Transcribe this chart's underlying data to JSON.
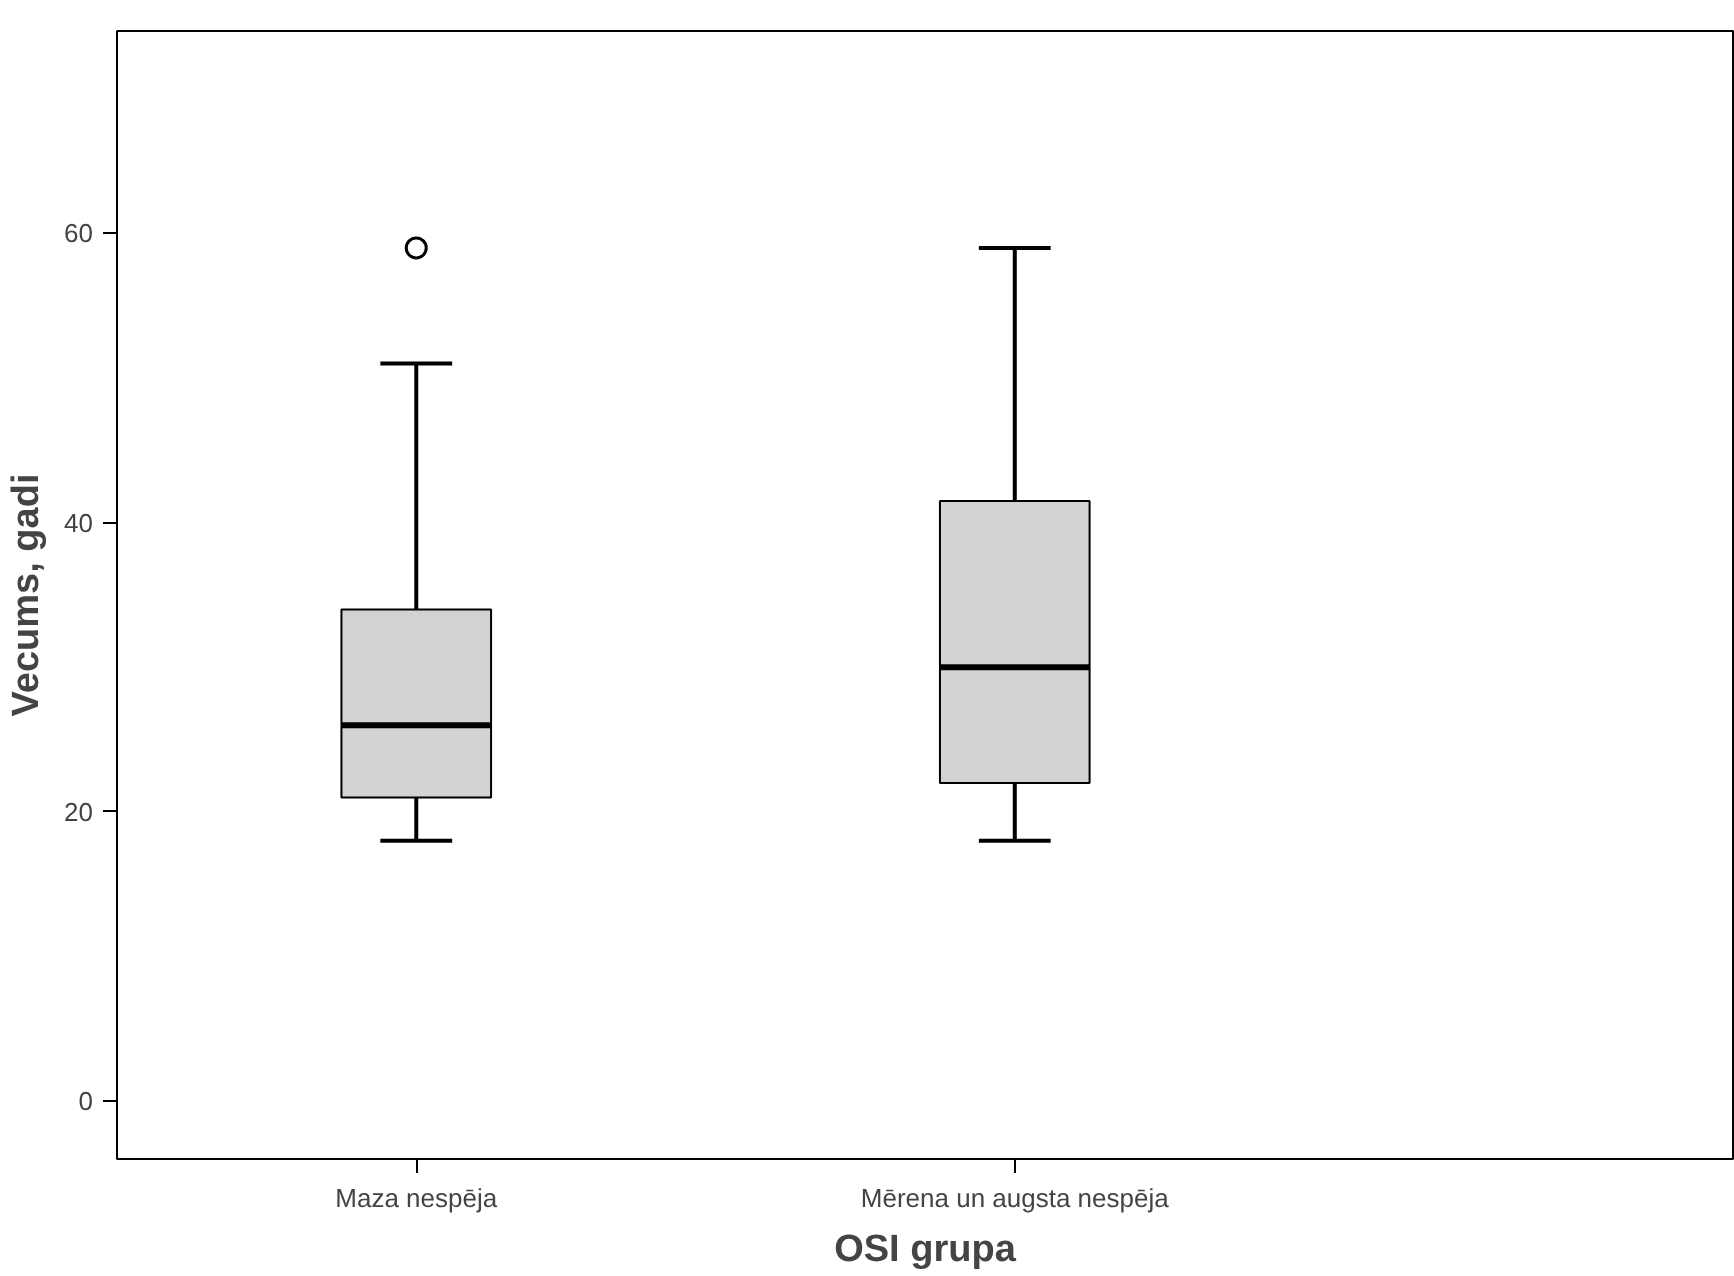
{
  "chart_data": {
    "type": "box",
    "xlabel": "OSI grupa",
    "ylabel": "Vecums, gadi",
    "categories": [
      "Maza nespēja",
      "Mērena un augsta nespēja"
    ],
    "color": "#d3d3d3",
    "boxes": [
      {
        "low": 18,
        "q1": 21,
        "median": 26,
        "q3": 34,
        "high": 51,
        "outliers": [
          59
        ]
      },
      {
        "low": 18,
        "q1": 22,
        "median": 30,
        "q3": 41.5,
        "high": 59
      }
    ],
    "ylim": [
      -4,
      74
    ],
    "yticks": [
      0,
      20,
      40,
      60
    ]
  }
}
